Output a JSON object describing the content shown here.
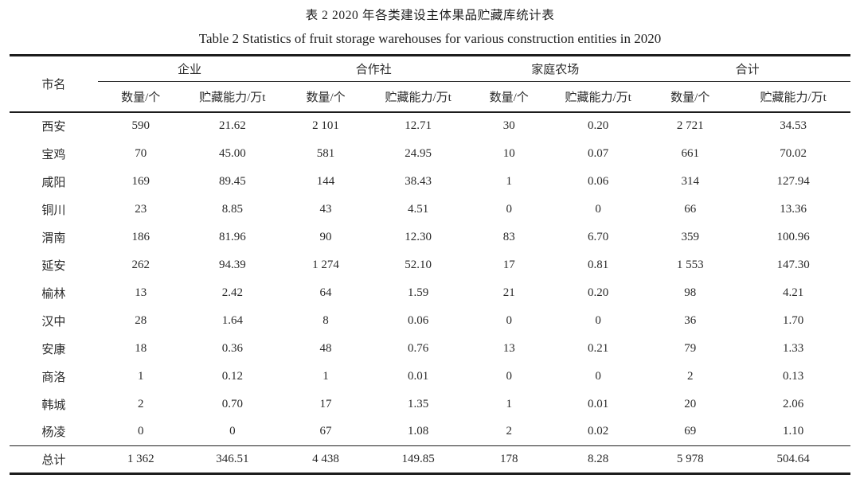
{
  "title_zh": "表 2 2020 年各类建设主体果品贮藏库统计表",
  "title_en": "Table 2 Statistics of fruit storage warehouses for various construction entities in 2020",
  "table": {
    "city_header": "市名",
    "groups": [
      {
        "label": "企业"
      },
      {
        "label": "合作社"
      },
      {
        "label": "家庭农场"
      },
      {
        "label": "合计"
      }
    ],
    "sub_headers": [
      "数量/个",
      "贮藏能力/万t"
    ],
    "rows": [
      {
        "city": "西安",
        "values": [
          "590",
          "21.62",
          "2 101",
          "12.71",
          "30",
          "0.20",
          "2 721",
          "34.53"
        ]
      },
      {
        "city": "宝鸡",
        "values": [
          "70",
          "45.00",
          "581",
          "24.95",
          "10",
          "0.07",
          "661",
          "70.02"
        ]
      },
      {
        "city": "咸阳",
        "values": [
          "169",
          "89.45",
          "144",
          "38.43",
          "1",
          "0.06",
          "314",
          "127.94"
        ]
      },
      {
        "city": "铜川",
        "values": [
          "23",
          "8.85",
          "43",
          "4.51",
          "0",
          "0",
          "66",
          "13.36"
        ]
      },
      {
        "city": "渭南",
        "values": [
          "186",
          "81.96",
          "90",
          "12.30",
          "83",
          "6.70",
          "359",
          "100.96"
        ]
      },
      {
        "city": "延安",
        "values": [
          "262",
          "94.39",
          "1 274",
          "52.10",
          "17",
          "0.81",
          "1 553",
          "147.30"
        ]
      },
      {
        "city": "榆林",
        "values": [
          "13",
          "2.42",
          "64",
          "1.59",
          "21",
          "0.20",
          "98",
          "4.21"
        ]
      },
      {
        "city": "汉中",
        "values": [
          "28",
          "1.64",
          "8",
          "0.06",
          "0",
          "0",
          "36",
          "1.70"
        ]
      },
      {
        "city": "安康",
        "values": [
          "18",
          "0.36",
          "48",
          "0.76",
          "13",
          "0.21",
          "79",
          "1.33"
        ]
      },
      {
        "city": "商洛",
        "values": [
          "1",
          "0.12",
          "1",
          "0.01",
          "0",
          "0",
          "2",
          "0.13"
        ]
      },
      {
        "city": "韩城",
        "values": [
          "2",
          "0.70",
          "17",
          "1.35",
          "1",
          "0.01",
          "20",
          "2.06"
        ]
      },
      {
        "city": "杨凌",
        "values": [
          "0",
          "0",
          "67",
          "1.08",
          "2",
          "0.02",
          "69",
          "1.10"
        ]
      }
    ],
    "total_row": {
      "city": "总计",
      "values": [
        "1 362",
        "346.51",
        "4 438",
        "149.85",
        "178",
        "8.28",
        "5 978",
        "504.64"
      ]
    }
  }
}
